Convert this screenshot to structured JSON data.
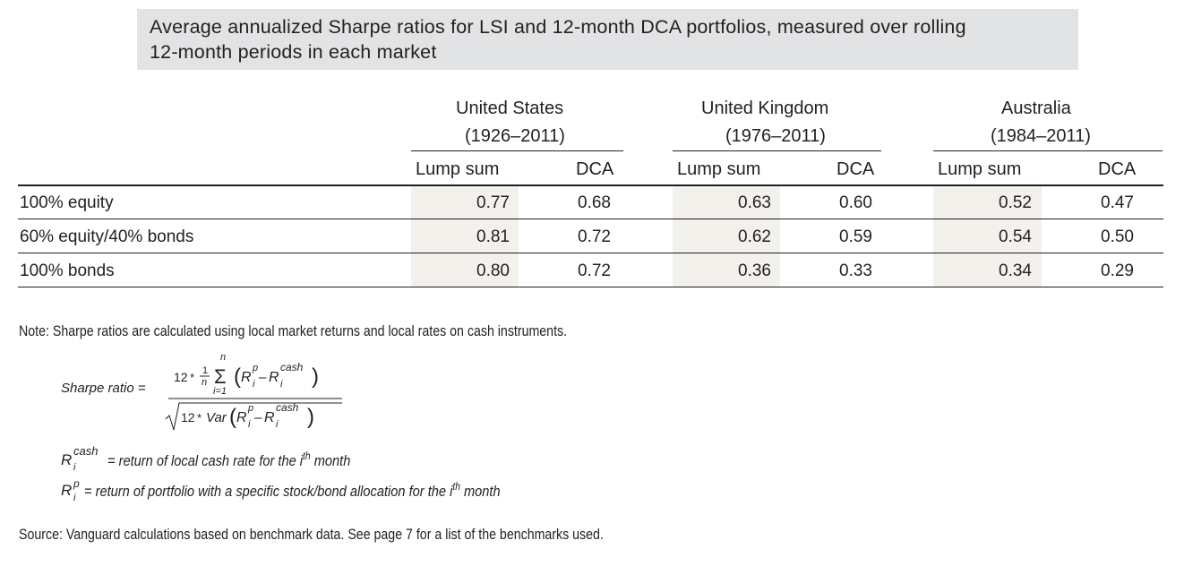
{
  "title": {
    "line1": "Average annualized Sharpe ratios for LSI and 12-month DCA portfolios, measured over rolling",
    "line2": "12-month periods in each market"
  },
  "markets": [
    {
      "name": "United States",
      "period": "(1926–2011)"
    },
    {
      "name": "United Kingdom",
      "period": "(1976–2011)"
    },
    {
      "name": "Australia",
      "period": "(1984–2011)"
    }
  ],
  "subheaders": {
    "lump_sum": "Lump sum",
    "dca": "DCA"
  },
  "rows": [
    {
      "label": "100% equity",
      "values": [
        "0.77",
        "0.68",
        "0.63",
        "0.60",
        "0.52",
        "0.47"
      ]
    },
    {
      "label": "60% equity/40% bonds",
      "values": [
        "0.81",
        "0.72",
        "0.62",
        "0.59",
        "0.54",
        "0.50"
      ]
    },
    {
      "label": "100% bonds",
      "values": [
        "0.80",
        "0.72",
        "0.36",
        "0.33",
        "0.34",
        "0.29"
      ]
    }
  ],
  "note": "Note: Sharpe ratios are calculated using local market returns and local rates on cash instruments.",
  "formula": {
    "lhs": "Sharpe ratio =",
    "twelve": "12",
    "star": "*",
    "one": "1",
    "n": "n",
    "sigma": "Σ",
    "i_eq_1": "i=1",
    "var": "Var",
    "R": "R",
    "p": "p",
    "i": "i",
    "cash": "cash",
    "minus": "–"
  },
  "definitions": {
    "cash_def": "= return of local cash rate for the i",
    "cash_def_end": " month",
    "port_def": "= return of portfolio with a specific stock/bond allocation for the i",
    "port_def_end": " month",
    "th": "th"
  },
  "source": "Source: Vanguard calculations based on benchmark data. See page 7 for a list of the benchmarks used."
}
